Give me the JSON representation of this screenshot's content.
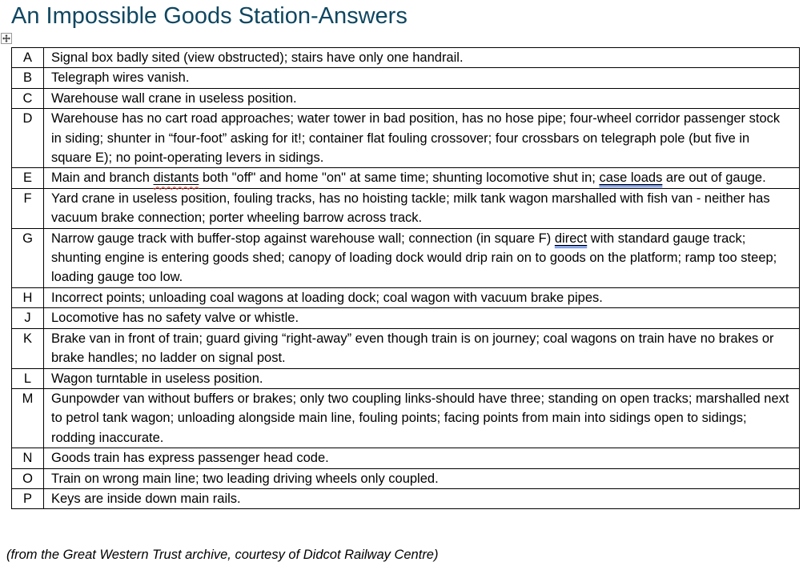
{
  "page": {
    "title": "An Impossible Goods Station-Answers",
    "footer": "(from the Great Western Trust archive, courtesy of Didcot Railway Centre)"
  },
  "colors": {
    "title_text": "#0F4761",
    "body_text": "#000000",
    "table_border": "#000000",
    "spellcheck_underline": "#D83931",
    "grammar_underline": "#2F5FD0"
  },
  "icons": {
    "table_move_handle": "four-way-move-arrow"
  },
  "table": {
    "rows": [
      {
        "key": "A",
        "segments": [
          {
            "text": "Signal box badly sited (view obstructed); stairs have only one handrail."
          }
        ]
      },
      {
        "key": "B",
        "segments": [
          {
            "text": "Telegraph wires vanish."
          }
        ]
      },
      {
        "key": "C",
        "segments": [
          {
            "text": "Warehouse wall crane in useless position."
          }
        ]
      },
      {
        "key": "D",
        "segments": [
          {
            "text": "Warehouse has no cart road approaches; water tower in bad position, has no hose pipe; four-wheel corridor passenger stock in siding; shunter in “four-foot” asking for it!; container flat fouling crossover; four crossbars on telegraph pole (but five in square E); no point-operating levers in sidings."
          }
        ]
      },
      {
        "key": "E",
        "segments": [
          {
            "text": "Main and branch "
          },
          {
            "text": "distants",
            "marks": [
              "underline",
              "spellcheck"
            ]
          },
          {
            "text": " both \"off\" and home \"on\" at same time; shunting locomotive shut in; "
          },
          {
            "text": "case loads",
            "marks": [
              "underline",
              "grammar"
            ]
          },
          {
            "text": " are out of gauge."
          }
        ]
      },
      {
        "key": "F",
        "segments": [
          {
            "text": "Yard crane in useless position, fouling tracks, has no hoisting tackle; milk tank wagon marshalled with fish van - neither has vacuum brake connection; porter wheeling barrow across track."
          }
        ]
      },
      {
        "key": "G",
        "segments": [
          {
            "text": "Narrow gauge track with buffer-stop against warehouse wall; connection (in square F) "
          },
          {
            "text": "direct",
            "marks": [
              "underline",
              "grammar"
            ]
          },
          {
            "text": " with standard gauge track; shunting engine is entering goods shed; canopy of loading dock would drip rain on to goods on the platform; ramp too steep; loading gauge too low."
          }
        ]
      },
      {
        "key": "H",
        "segments": [
          {
            "text": "Incorrect points; unloading coal wagons at loading dock; coal wagon with vacuum brake pipes."
          }
        ]
      },
      {
        "key": "J",
        "segments": [
          {
            "text": "Locomotive has no safety valve or whistle."
          }
        ]
      },
      {
        "key": "K",
        "segments": [
          {
            "text": "Brake van in front of train; guard giving “right-away” even though train is on journey; coal wagons on train have no brakes or brake handles; no ladder on signal post."
          }
        ]
      },
      {
        "key": "L",
        "segments": [
          {
            "text": "Wagon turntable in useless position."
          }
        ]
      },
      {
        "key": "M",
        "segments": [
          {
            "text": "Gunpowder van without buffers or brakes; only two coupling links-should have three; standing on open tracks; marshalled next to petrol tank wagon; unloading alongside main line, fouling points; facing points from main into sidings open to sidings; rodding inaccurate."
          }
        ]
      },
      {
        "key": "N",
        "segments": [
          {
            "text": "Goods train has express passenger head code."
          }
        ]
      },
      {
        "key": "O",
        "segments": [
          {
            "text": "Train on wrong main line; two leading driving wheels only coupled."
          }
        ]
      },
      {
        "key": "P",
        "segments": [
          {
            "text": "Keys are inside down main rails."
          }
        ]
      }
    ]
  }
}
